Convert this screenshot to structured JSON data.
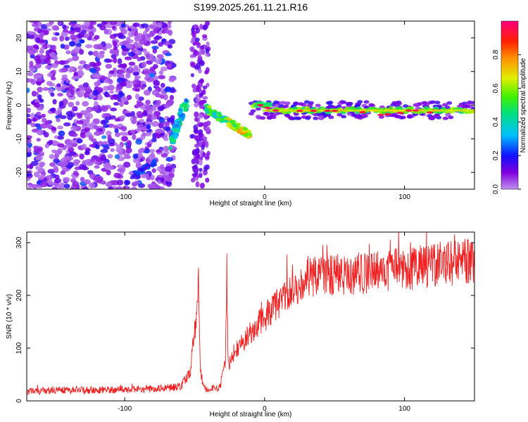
{
  "title": "S199.2025.261.11.21.R16",
  "chart_data": [
    {
      "type": "heatmap",
      "title": "S199.2025.261.11.21.R16",
      "xlabel": "Height of straight line (km)",
      "ylabel": "Frequency (Hz)",
      "xlim": [
        -170,
        150
      ],
      "ylim": [
        -25,
        25
      ],
      "xticks": [
        -100,
        0,
        100
      ],
      "yticks": [
        -20,
        -10,
        0,
        10,
        20
      ],
      "colorbar": {
        "label": "Normalized spectral amplitude",
        "range": [
          0.0,
          1.0
        ],
        "ticks": [
          0.0,
          0.2,
          0.4,
          0.6,
          0.8
        ],
        "tick_labels": [
          "0.0",
          "0.2",
          "0.4",
          "0.6",
          "0.8"
        ],
        "colormap": [
          "#c090f0",
          "#8000e0",
          "#1010ff",
          "#00c0ff",
          "#00e080",
          "#40f000",
          "#e0f000",
          "#ff9000",
          "#ff2000",
          "#ff0080"
        ]
      },
      "features": [
        {
          "name": "background noise (diffuse, low amplitude)",
          "x_range": [
            -170,
            -65
          ],
          "freq_range": [
            -25,
            25
          ],
          "amplitude": "0.0-0.3"
        },
        {
          "name": "noise column",
          "x_range": [
            -52,
            -40
          ],
          "freq_range": [
            -25,
            25
          ],
          "amplitude": "0.0-0.2"
        },
        {
          "name": "noise streak",
          "x_range": [
            -95,
            -78
          ],
          "freq_range": [
            -21,
            -17
          ],
          "amplitude": "0.2-0.3"
        },
        {
          "name": "early signal",
          "x_range": [
            -68,
            -55
          ],
          "freq_range": [
            -12,
            4
          ],
          "amplitude": "0.3-0.5"
        },
        {
          "name": "descending tone",
          "x_range": [
            -42,
            -10
          ],
          "freq_range": [
            -10,
            -1
          ],
          "amplitude": "0.3-0.9"
        },
        {
          "name": "steady tone",
          "x_range": [
            -10,
            150
          ],
          "freq_range": [
            -3,
            0
          ],
          "amplitude": "0.4-1.0"
        }
      ]
    },
    {
      "type": "line",
      "xlabel": "Height of straight line (km)",
      "ylabel": "SNR (10 * v/v)",
      "xlim": [
        -170,
        150
      ],
      "ylim": [
        0,
        320
      ],
      "xticks": [
        -100,
        0,
        100
      ],
      "yticks": [
        0,
        100,
        200,
        300
      ],
      "series": [
        {
          "name": "SNR",
          "color": "#ee2222",
          "x": [
            -170,
            -150,
            -130,
            -110,
            -90,
            -70,
            -60,
            -53,
            -51,
            -48,
            -47.5,
            -46,
            -43,
            -38,
            -32,
            -28,
            -27,
            -26,
            -20,
            -10,
            0,
            10,
            20,
            30,
            40,
            60,
            80,
            100,
            120,
            140,
            150
          ],
          "y": [
            18,
            20,
            20,
            21,
            22,
            24,
            28,
            55,
            110,
            170,
            255,
            60,
            22,
            22,
            25,
            80,
            240,
            65,
            95,
            130,
            158,
            185,
            212,
            232,
            238,
            240,
            245,
            250,
            258,
            262,
            268
          ]
        }
      ]
    }
  ]
}
